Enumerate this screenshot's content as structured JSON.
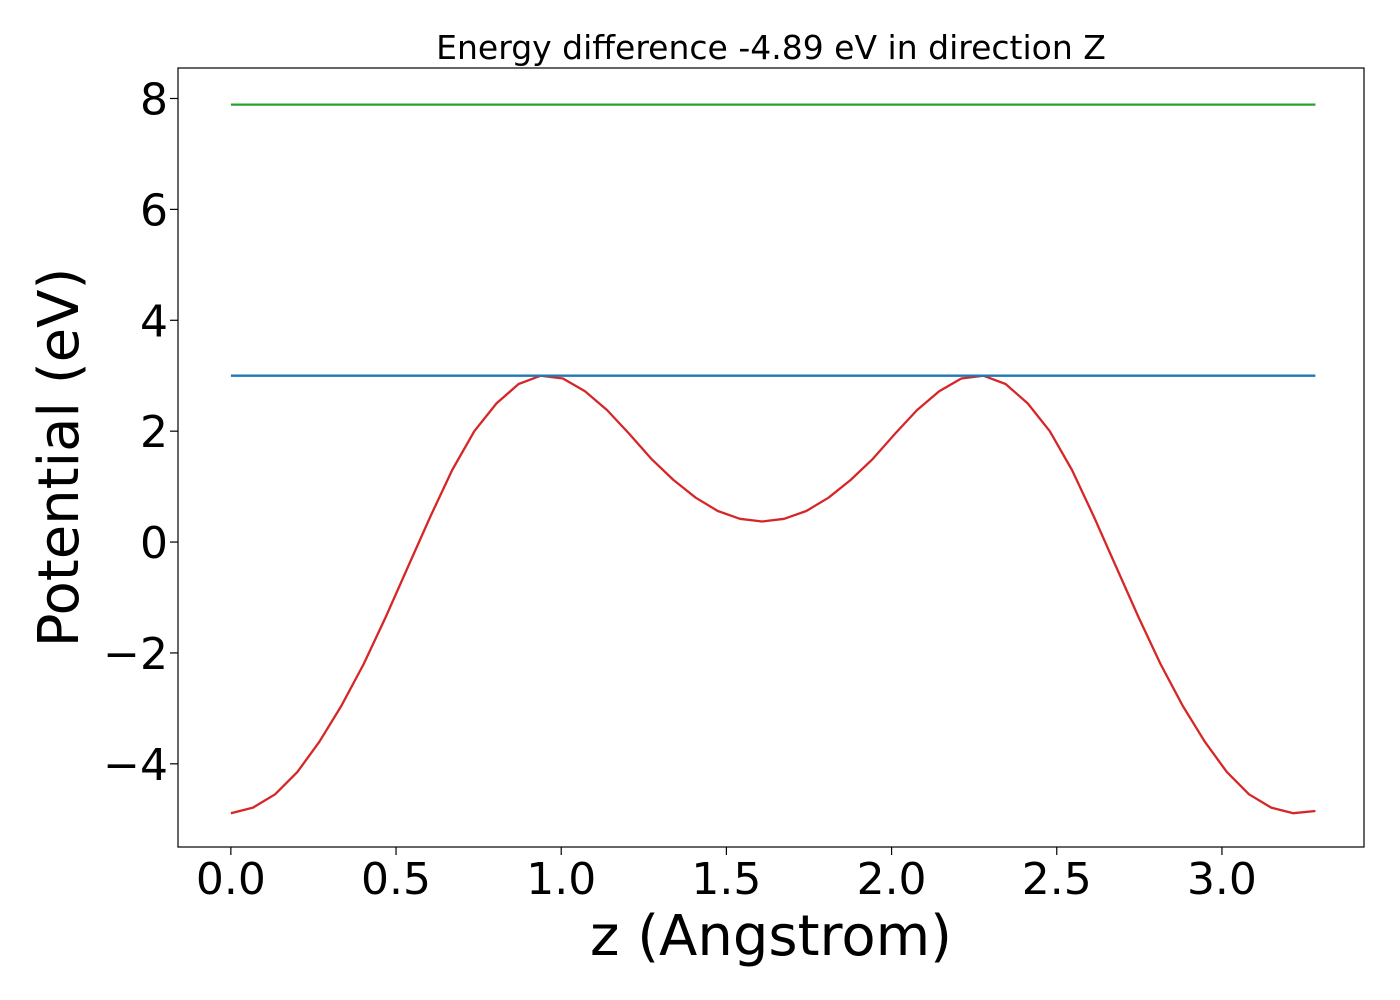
{
  "chart_data": {
    "type": "line",
    "title": "Energy difference -4.89 eV in direction Z",
    "xlabel": "z (Angstrom)",
    "ylabel": "Potential (eV)",
    "xlim": [
      -0.16,
      3.43
    ],
    "ylim": [
      -5.5,
      8.55
    ],
    "xticks": [
      0.0,
      0.5,
      1.0,
      1.5,
      2.0,
      2.5,
      3.0
    ],
    "xtick_labels": [
      "0.0",
      "0.5",
      "1.0",
      "1.5",
      "2.0",
      "2.5",
      "3.0"
    ],
    "yticks": [
      -4,
      -2,
      0,
      2,
      4,
      6,
      8
    ],
    "ytick_labels": [
      "−4",
      "−2",
      "0",
      "2",
      "4",
      "6",
      "8"
    ],
    "grid": false,
    "series": [
      {
        "color": "#d62728",
        "x": [
          0.0,
          0.067,
          0.134,
          0.201,
          0.268,
          0.335,
          0.402,
          0.469,
          0.536,
          0.603,
          0.67,
          0.737,
          0.804,
          0.871,
          0.938,
          1.005,
          1.072,
          1.139,
          1.206,
          1.273,
          1.34,
          1.407,
          1.474,
          1.541,
          1.608,
          1.675,
          1.742,
          1.809,
          1.876,
          1.943,
          2.01,
          2.077,
          2.144,
          2.211,
          2.278,
          2.345,
          2.412,
          2.479,
          2.546,
          2.613,
          2.68,
          2.747,
          2.814,
          2.881,
          2.948,
          3.015,
          3.082,
          3.149,
          3.216,
          3.283
        ],
        "y": [
          -4.89,
          -4.79,
          -4.55,
          -4.15,
          -3.6,
          -2.95,
          -2.2,
          -1.35,
          -0.45,
          0.45,
          1.3,
          2.0,
          2.5,
          2.85,
          3.0,
          2.95,
          2.72,
          2.38,
          1.95,
          1.5,
          1.12,
          0.8,
          0.56,
          0.42,
          0.37,
          0.42,
          0.56,
          0.8,
          1.12,
          1.5,
          1.95,
          2.38,
          2.72,
          2.95,
          3.0,
          2.85,
          2.5,
          2.0,
          1.3,
          0.45,
          -0.45,
          -1.35,
          -2.2,
          -2.95,
          -3.6,
          -4.15,
          -4.55,
          -4.79,
          -4.89,
          -4.85
        ]
      },
      {
        "color": "#1f77b4",
        "x": [
          0.0,
          3.283
        ],
        "y": [
          3.0,
          3.0
        ]
      },
      {
        "color": "#2ca02c",
        "x": [
          0.0,
          3.283
        ],
        "y": [
          7.89,
          7.89
        ]
      }
    ]
  }
}
